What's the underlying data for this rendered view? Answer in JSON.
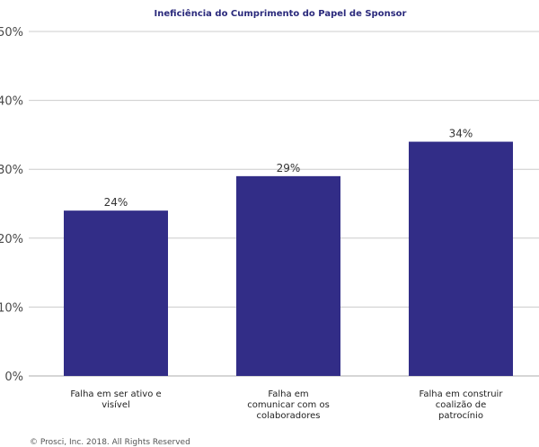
{
  "chart_data": {
    "type": "bar",
    "title": "Ineficiência do Cumprimento do Papel de Sponsor",
    "categories": [
      [
        "Falha em ser ativo e",
        "visível"
      ],
      [
        "Falha em",
        "comunicar com os",
        "colaboradores"
      ],
      [
        "Falha em construir",
        "coalizão de",
        "patrocínio"
      ]
    ],
    "values": [
      24,
      29,
      34
    ],
    "value_labels": [
      "24%",
      "29%",
      "34%"
    ],
    "yticks": [
      0,
      10,
      20,
      30,
      40,
      50
    ],
    "ytick_labels": [
      "0%",
      "10%",
      "20%",
      "30%",
      "40%",
      "50%"
    ],
    "ylim": [
      0,
      50
    ],
    "xlabel": "",
    "ylabel": "",
    "grid": true,
    "legend": "none"
  },
  "colors": {
    "bar": "#322D87",
    "title": "#2B2A7C",
    "grid": "#cccccc",
    "axis": "#bdbdbd"
  },
  "footer": {
    "copyright": "© Prosci, Inc. 2018. All Rights Reserved"
  }
}
